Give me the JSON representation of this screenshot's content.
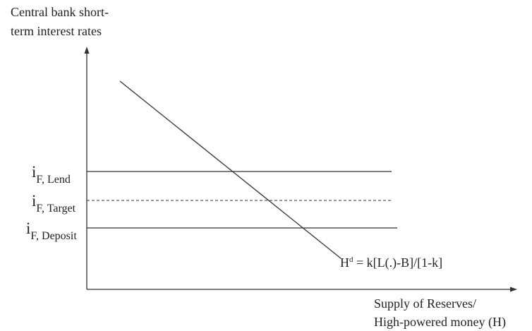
{
  "axes": {
    "y_label_line1": "Central bank short-",
    "y_label_line2": "term interest rates",
    "x_label_line1": "Supply of Reserves/",
    "x_label_line2": "High-powered money (H)"
  },
  "rates": {
    "lend": {
      "symbol": "i",
      "subscript": "F, Lend"
    },
    "target": {
      "symbol": "i",
      "subscript": "F, Target"
    },
    "deposit": {
      "symbol": "i",
      "subscript": "F, Deposit"
    }
  },
  "demand_curve": {
    "symbol": "H",
    "superscript": "d",
    "equation": " = k[L(.)-B]/[1-k]"
  },
  "colors": {
    "line": "#333333",
    "text": "#222222"
  }
}
